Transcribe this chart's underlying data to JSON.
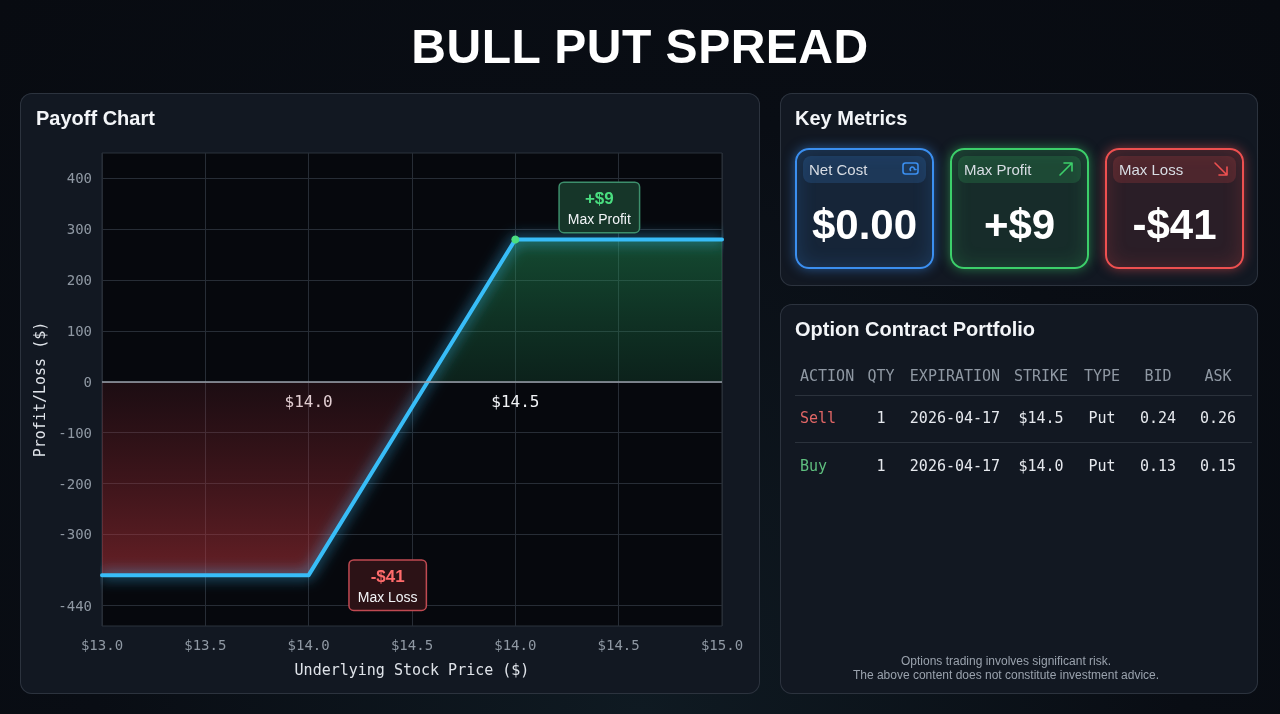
{
  "chart_data": [
    {
      "type": "area",
      "title": "BULL PUT SPREAD",
      "subtitle": "Payoff Chart",
      "xlabel": "Underlying Stock Price ($)",
      "ylabel": "Profit/Loss ($)",
      "categories": [
        "$13.0",
        "$13.5",
        "$14.0",
        "$14.5",
        "$14.0",
        "$14.5",
        "$15.0"
      ],
      "values": [
        -380,
        -380,
        -380,
        -50,
        280,
        280,
        280
      ],
      "color": "#38bdf8",
      "ylim": [
        -480,
        450
      ],
      "yticks": [
        -440,
        -300,
        -200,
        -100,
        0,
        100,
        200,
        300,
        400
      ],
      "grid": true,
      "ref_lines": [
        {
          "axis": "y",
          "value": 0,
          "color": "#9aa1ab"
        }
      ],
      "annotations": [
        "$14.0",
        "$14.5",
        {
          "text": "+$9\nMax Profit",
          "y": 280
        },
        "-$41\nMax Loss"
      ]
    },
    {
      "type": "other",
      "title": "Key Metrics",
      "categories": [
        "Net Cost",
        "Max Profit",
        "Max Loss"
      ],
      "value_labels": [
        "$0.00",
        "+$9",
        "-$41"
      ],
      "colors": [
        "#3b8ff0",
        "#3ccf6a",
        "#ee5050"
      ]
    },
    {
      "type": "other",
      "title": "Option Contract Portfolio",
      "categories": [
        "ACTION",
        "QTY",
        "EXPIRATION",
        "STRIKE",
        "TYPE",
        "BID",
        "ASK"
      ],
      "y_categories": [
        "Sell",
        "Buy"
      ],
      "cell_labels": [
        [
          "1",
          "2026-04-17",
          "$14.5",
          "Put",
          "0.24",
          "0.26"
        ],
        [
          "1",
          "2026-04-17",
          "$14.0",
          "Put",
          "0.13",
          "0.15"
        ]
      ],
      "annotations": [
        "Options trading involves significant risk.",
        "The above content does not constitute investment advice."
      ]
    }
  ]
}
